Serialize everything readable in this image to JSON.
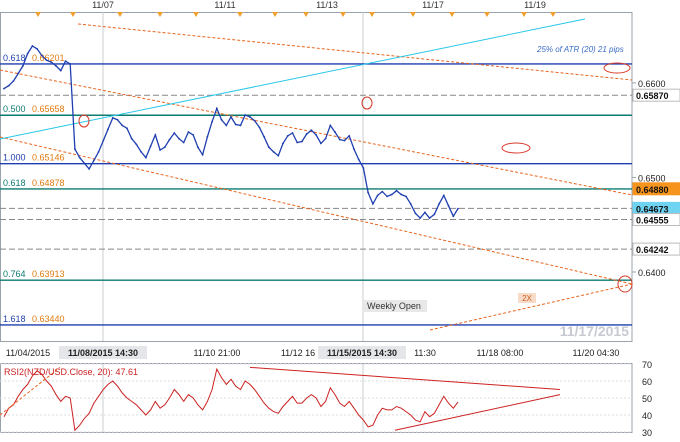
{
  "chart_data": [
    {
      "type": "line",
      "panel": "price",
      "grid": false,
      "top_date_labels": [
        "11/07",
        "11/11",
        "11/13",
        "11/17",
        "11/19"
      ],
      "x_tick_labels": [
        "11/04/2015",
        "11/08/2015 14:30",
        "11/10 21:00",
        "11/12 16",
        "11/15/2015 14:30",
        "11:30",
        "11/18 08:00",
        "11/20 04:30"
      ],
      "y_tick_labels": [
        "0.6600",
        "0.6500",
        "0.6400"
      ],
      "ylim": [
        0.6327,
        0.6675
      ],
      "price_tags": [
        {
          "label": "0.65870",
          "value": 0.6587,
          "color": "#ffffff"
        },
        {
          "label": "0.64880",
          "value": 0.6488,
          "color": "#f7941d"
        },
        {
          "label": "0.64673",
          "value": 0.64673,
          "color": "#6fd3f2"
        },
        {
          "label": "0.64555",
          "value": 0.64555,
          "color": "#ffffff"
        },
        {
          "label": "0.64242",
          "value": 0.64242,
          "color": "#ffffff"
        }
      ],
      "fib_levels": [
        {
          "ratio": "0.618",
          "price": "0.66201",
          "value": 0.66201,
          "color": "#1f3fb0"
        },
        {
          "ratio": "0.500",
          "price": "0.65658",
          "value": 0.65658,
          "color": "#0d7a70"
        },
        {
          "ratio": "1.000",
          "price": "0.65146",
          "value": 0.65146,
          "color": "#1f3fb0"
        },
        {
          "ratio": "0.618",
          "price": "0.64878",
          "value": 0.64878,
          "color": "#0d7a70"
        },
        {
          "ratio": "0.764",
          "price": "0.63913",
          "value": 0.63913,
          "color": "#0d7a70"
        },
        {
          "ratio": "1.618",
          "price": "0.63440",
          "value": 0.6344,
          "color": "#1f3fb0"
        }
      ],
      "annotations": {
        "atr_note": "25% of ATR (20) 21 pips",
        "weekly_open": "Weekly Open",
        "multiplier": "2X",
        "date_watermark": "11/17/2015"
      },
      "series": [
        {
          "name": "NZD/USD",
          "color": "#1f3fb0",
          "values": [
            0.6594,
            0.6597,
            0.6602,
            0.661,
            0.6618,
            0.6631,
            0.6639,
            0.6636,
            0.6629,
            0.6624,
            0.6622,
            0.6618,
            0.6613,
            0.6623,
            0.662,
            0.653,
            0.6521,
            0.6515,
            0.6509,
            0.6518,
            0.6527,
            0.6539,
            0.6551,
            0.6563,
            0.6561,
            0.6555,
            0.6552,
            0.6541,
            0.6535,
            0.6527,
            0.6521,
            0.6533,
            0.6545,
            0.6529,
            0.6532,
            0.654,
            0.6547,
            0.6541,
            0.6537,
            0.6548,
            0.6545,
            0.6532,
            0.6524,
            0.6543,
            0.6559,
            0.6573,
            0.6561,
            0.6555,
            0.6564,
            0.6556,
            0.6555,
            0.6566,
            0.6564,
            0.656,
            0.6553,
            0.6543,
            0.6532,
            0.6527,
            0.6523,
            0.6536,
            0.6544,
            0.6547,
            0.6537,
            0.6538,
            0.6546,
            0.655,
            0.6545,
            0.6536,
            0.6541,
            0.6555,
            0.6548,
            0.654,
            0.6539,
            0.6544,
            0.653,
            0.6519,
            0.651,
            0.6484,
            0.6472,
            0.6481,
            0.6485,
            0.648,
            0.6482,
            0.6486,
            0.6482,
            0.648,
            0.6472,
            0.6462,
            0.6457,
            0.6463,
            0.6457,
            0.6461,
            0.6472,
            0.6481,
            0.647,
            0.6459,
            0.6467
          ]
        },
        {
          "name": "RSI2(NZD/USD.Close, 20): 47.61",
          "color": "#cc2222",
          "panel": "rsi",
          "ylim": [
            30,
            70
          ],
          "y_tick_labels": [
            "70",
            "60",
            "50",
            "40",
            "30"
          ],
          "values": [
            39,
            44,
            46,
            51,
            55,
            58,
            63,
            66,
            64,
            60,
            57,
            52,
            48,
            51,
            50,
            31,
            34,
            38,
            41,
            47,
            51,
            55,
            58,
            60,
            57,
            53,
            50,
            48,
            46,
            43,
            40,
            43,
            48,
            44,
            46,
            50,
            55,
            52,
            48,
            52,
            50,
            46,
            43,
            48,
            55,
            67,
            62,
            58,
            61,
            57,
            55,
            60,
            58,
            55,
            51,
            47,
            44,
            42,
            41,
            45,
            48,
            51,
            47,
            47,
            50,
            52,
            50,
            45,
            48,
            56,
            52,
            47,
            45,
            48,
            44,
            40,
            37,
            33,
            34,
            40,
            44,
            43,
            43,
            45,
            44,
            42,
            40,
            37,
            36,
            42,
            39,
            41,
            46,
            51,
            47,
            44,
            47.6
          ]
        }
      ]
    }
  ]
}
